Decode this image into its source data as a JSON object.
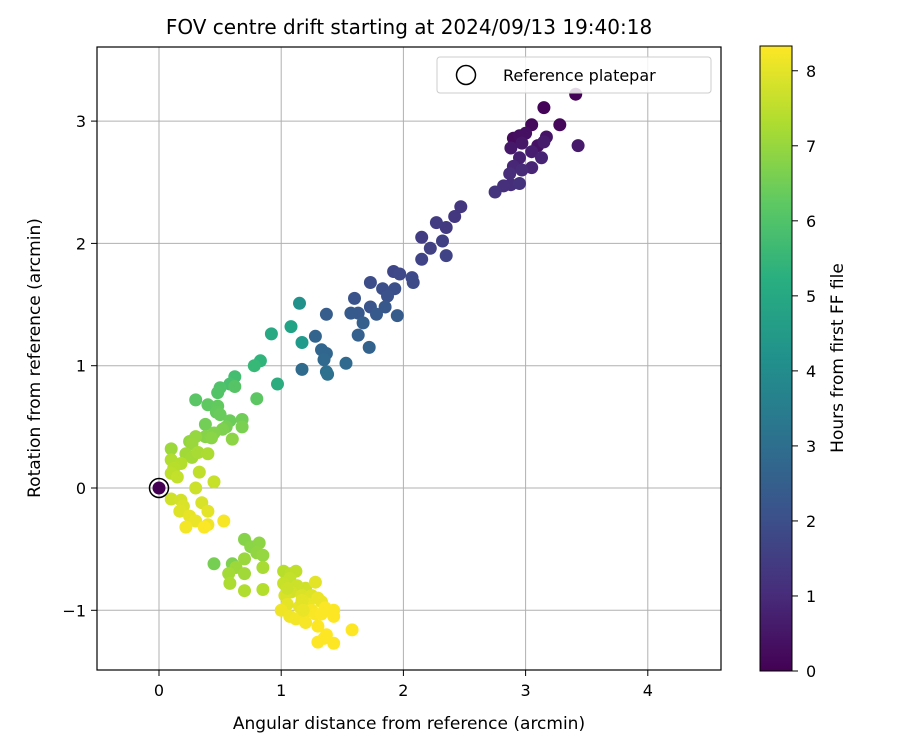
{
  "chart_data": {
    "type": "scatter",
    "title": "FOV centre drift starting at 2024/09/13 19:40:18",
    "xlabel": "Angular distance from reference (arcmin)",
    "ylabel": "Rotation from reference (arcmin)",
    "xlim": [
      -0.5,
      4.6
    ],
    "ylim": [
      -1.5,
      3.6
    ],
    "xticks": [
      "0",
      "1",
      "2",
      "3",
      "4"
    ],
    "yticks": [
      "−1",
      "0",
      "1",
      "2",
      "3"
    ],
    "grid": true,
    "legend": {
      "position": "top-right",
      "entries": [
        "Reference platepar"
      ]
    },
    "reference_point": {
      "x": 0,
      "y": 0,
      "label": "Reference platepar"
    },
    "colorbar": {
      "label": "Hours from first FF file",
      "range": [
        0,
        8.33
      ],
      "ticks": [
        "0",
        "1",
        "2",
        "3",
        "4",
        "5",
        "6",
        "7",
        "8"
      ],
      "colormap": "viridis"
    },
    "points": [
      [
        3.41,
        3.22,
        0.05
      ],
      [
        3.15,
        3.11,
        0.1
      ],
      [
        3.28,
        2.97,
        0.15
      ],
      [
        3.05,
        2.97,
        0.2
      ],
      [
        2.9,
        2.86,
        0.25
      ],
      [
        2.95,
        2.88,
        0.3
      ],
      [
        3.0,
        2.9,
        0.35
      ],
      [
        3.1,
        2.8,
        0.4
      ],
      [
        3.17,
        2.87,
        0.45
      ],
      [
        2.97,
        2.82,
        0.5
      ],
      [
        2.88,
        2.78,
        0.55
      ],
      [
        3.43,
        2.8,
        0.6
      ],
      [
        3.15,
        2.83,
        0.65
      ],
      [
        3.05,
        2.75,
        0.7
      ],
      [
        2.95,
        2.7,
        0.75
      ],
      [
        3.13,
        2.7,
        0.8
      ],
      [
        3.05,
        2.62,
        0.85
      ],
      [
        2.9,
        2.63,
        0.9
      ],
      [
        2.97,
        2.6,
        1.0
      ],
      [
        2.87,
        2.57,
        1.05
      ],
      [
        2.88,
        2.48,
        1.1
      ],
      [
        2.82,
        2.47,
        1.15
      ],
      [
        2.95,
        2.49,
        1.2
      ],
      [
        2.75,
        2.42,
        1.25
      ],
      [
        2.47,
        2.3,
        1.3
      ],
      [
        2.42,
        2.22,
        1.35
      ],
      [
        2.35,
        2.13,
        1.4
      ],
      [
        2.27,
        2.17,
        1.45
      ],
      [
        2.15,
        2.05,
        1.5
      ],
      [
        2.32,
        2.02,
        1.55
      ],
      [
        2.22,
        1.96,
        1.6
      ],
      [
        2.35,
        1.9,
        1.65
      ],
      [
        2.15,
        1.87,
        1.7
      ],
      [
        1.92,
        1.77,
        1.75
      ],
      [
        1.97,
        1.75,
        1.8
      ],
      [
        2.07,
        1.72,
        1.85
      ],
      [
        2.08,
        1.68,
        1.9
      ],
      [
        1.73,
        1.68,
        1.95
      ],
      [
        1.83,
        1.63,
        2.0
      ],
      [
        1.93,
        1.63,
        2.05
      ],
      [
        1.87,
        1.57,
        2.1
      ],
      [
        1.6,
        1.55,
        2.15
      ],
      [
        1.73,
        1.48,
        2.2
      ],
      [
        1.85,
        1.48,
        2.25
      ],
      [
        1.63,
        1.43,
        2.3
      ],
      [
        1.57,
        1.43,
        2.35
      ],
      [
        1.78,
        1.42,
        2.35
      ],
      [
        1.95,
        1.41,
        2.4
      ],
      [
        1.37,
        1.42,
        2.45
      ],
      [
        1.67,
        1.35,
        2.5
      ],
      [
        1.63,
        1.25,
        2.55
      ],
      [
        1.72,
        1.15,
        2.6
      ],
      [
        1.28,
        1.24,
        2.65
      ],
      [
        1.33,
        1.13,
        2.7
      ],
      [
        1.37,
        1.1,
        2.75
      ],
      [
        1.35,
        1.05,
        2.8
      ],
      [
        1.53,
        1.02,
        2.85
      ],
      [
        1.17,
        0.97,
        2.9
      ],
      [
        1.37,
        0.95,
        3.0
      ],
      [
        1.38,
        0.93,
        3.1
      ],
      [
        1.15,
        1.51,
        4.2
      ],
      [
        1.17,
        1.19,
        4.5
      ],
      [
        1.08,
        1.32,
        4.8
      ],
      [
        0.92,
        1.26,
        5.0
      ],
      [
        0.97,
        0.85,
        5.2
      ],
      [
        0.83,
        1.04,
        5.4
      ],
      [
        0.78,
        1.0,
        5.6
      ],
      [
        0.62,
        0.91,
        5.8
      ],
      [
        0.58,
        0.85,
        5.9
      ],
      [
        0.5,
        0.82,
        6.0
      ],
      [
        0.48,
        0.78,
        6.05
      ],
      [
        0.62,
        0.83,
        6.1
      ],
      [
        0.3,
        0.72,
        6.15
      ],
      [
        0.8,
        0.73,
        6.2
      ],
      [
        0.4,
        0.68,
        6.25
      ],
      [
        0.48,
        0.67,
        6.3
      ],
      [
        0.47,
        0.62,
        6.35
      ],
      [
        0.5,
        0.6,
        6.4
      ],
      [
        0.58,
        0.55,
        6.45
      ],
      [
        0.68,
        0.56,
        6.5
      ],
      [
        0.38,
        0.52,
        6.55
      ],
      [
        0.55,
        0.5,
        6.6
      ],
      [
        0.68,
        0.5,
        6.65
      ],
      [
        0.52,
        0.48,
        6.7
      ],
      [
        0.45,
        0.45,
        6.75
      ],
      [
        0.38,
        0.42,
        6.8
      ],
      [
        0.43,
        0.41,
        6.85
      ],
      [
        0.6,
        0.4,
        6.9
      ],
      [
        0.25,
        0.38,
        6.95
      ],
      [
        0.3,
        0.42,
        7.0
      ],
      [
        0.27,
        0.36,
        7.05
      ],
      [
        0.1,
        0.32,
        7.1
      ],
      [
        0.22,
        0.28,
        7.15
      ],
      [
        0.27,
        0.25,
        7.2
      ],
      [
        0.32,
        0.29,
        7.25
      ],
      [
        0.4,
        0.28,
        7.3
      ],
      [
        0.1,
        0.23,
        7.35
      ],
      [
        0.18,
        0.2,
        7.4
      ],
      [
        0.12,
        0.16,
        7.45
      ],
      [
        0.1,
        0.12,
        7.5
      ],
      [
        0.33,
        0.13,
        7.55
      ],
      [
        0.15,
        0.09,
        7.6
      ],
      [
        0.45,
        0.05,
        7.65
      ],
      [
        0.3,
        0.0,
        7.7
      ],
      [
        0.1,
        -0.09,
        7.75
      ],
      [
        0.18,
        -0.1,
        7.8
      ],
      [
        0.35,
        -0.12,
        7.85
      ],
      [
        0.2,
        -0.15,
        7.9
      ],
      [
        0.17,
        -0.19,
        7.95
      ],
      [
        0.4,
        -0.19,
        8.0
      ],
      [
        0.25,
        -0.23,
        8.05
      ],
      [
        0.3,
        -0.27,
        8.1
      ],
      [
        0.4,
        -0.3,
        8.15
      ],
      [
        0.22,
        -0.32,
        8.2
      ],
      [
        0.53,
        -0.27,
        8.25
      ],
      [
        0.37,
        -0.32,
        8.3
      ]
    ],
    "points_b": [
      [
        0.45,
        -0.62,
        6.6
      ],
      [
        0.6,
        -0.62,
        6.7
      ],
      [
        0.7,
        -0.42,
        6.8
      ],
      [
        0.75,
        -0.48,
        6.85
      ],
      [
        0.82,
        -0.45,
        6.9
      ],
      [
        0.8,
        -0.53,
        6.95
      ],
      [
        0.85,
        -0.55,
        7.0
      ],
      [
        0.7,
        -0.58,
        7.05
      ],
      [
        0.63,
        -0.65,
        7.1
      ],
      [
        0.7,
        -0.7,
        7.15
      ],
      [
        0.57,
        -0.7,
        7.2
      ],
      [
        0.85,
        -0.65,
        7.25
      ],
      [
        0.58,
        -0.78,
        7.3
      ],
      [
        0.7,
        -0.84,
        7.35
      ],
      [
        0.85,
        -0.83,
        7.4
      ],
      [
        1.02,
        -0.68,
        7.45
      ],
      [
        1.08,
        -0.7,
        7.5
      ],
      [
        1.12,
        -0.68,
        7.55
      ],
      [
        1.07,
        -0.74,
        7.6
      ],
      [
        1.02,
        -0.78,
        7.65
      ],
      [
        1.13,
        -0.8,
        7.7
      ],
      [
        1.2,
        -0.82,
        7.75
      ],
      [
        1.08,
        -0.85,
        7.8
      ],
      [
        1.03,
        -0.88,
        7.85
      ],
      [
        1.17,
        -0.88,
        7.9
      ],
      [
        1.25,
        -0.88,
        7.95
      ],
      [
        1.28,
        -0.77,
        8.0
      ],
      [
        1.05,
        -0.95,
        8.02
      ],
      [
        1.15,
        -0.97,
        8.05
      ],
      [
        1.22,
        -0.95,
        8.08
      ],
      [
        1.3,
        -0.9,
        8.1
      ],
      [
        1.33,
        -0.93,
        8.12
      ],
      [
        1.0,
        -1.0,
        8.15
      ],
      [
        1.07,
        -1.05,
        8.17
      ],
      [
        1.12,
        -1.07,
        8.2
      ],
      [
        1.18,
        -1.05,
        8.22
      ],
      [
        1.2,
        -1.1,
        8.24
      ],
      [
        1.25,
        -1.0,
        8.26
      ],
      [
        1.28,
        -1.03,
        8.28
      ],
      [
        1.33,
        -1.03,
        8.3
      ],
      [
        1.36,
        -0.98,
        8.31
      ],
      [
        1.43,
        -1.0,
        8.32
      ],
      [
        1.43,
        -1.05,
        8.33
      ],
      [
        1.3,
        -1.13,
        8.33
      ],
      [
        1.37,
        -1.2,
        8.33
      ],
      [
        1.35,
        -1.23,
        8.33
      ],
      [
        1.3,
        -1.26,
        8.33
      ],
      [
        1.43,
        -1.27,
        8.33
      ],
      [
        1.58,
        -1.16,
        8.33
      ],
      [
        1.17,
        -0.92,
        8.0
      ],
      [
        1.05,
        -0.82,
        7.7
      ],
      [
        1.18,
        -1.0,
        8.1
      ]
    ]
  }
}
